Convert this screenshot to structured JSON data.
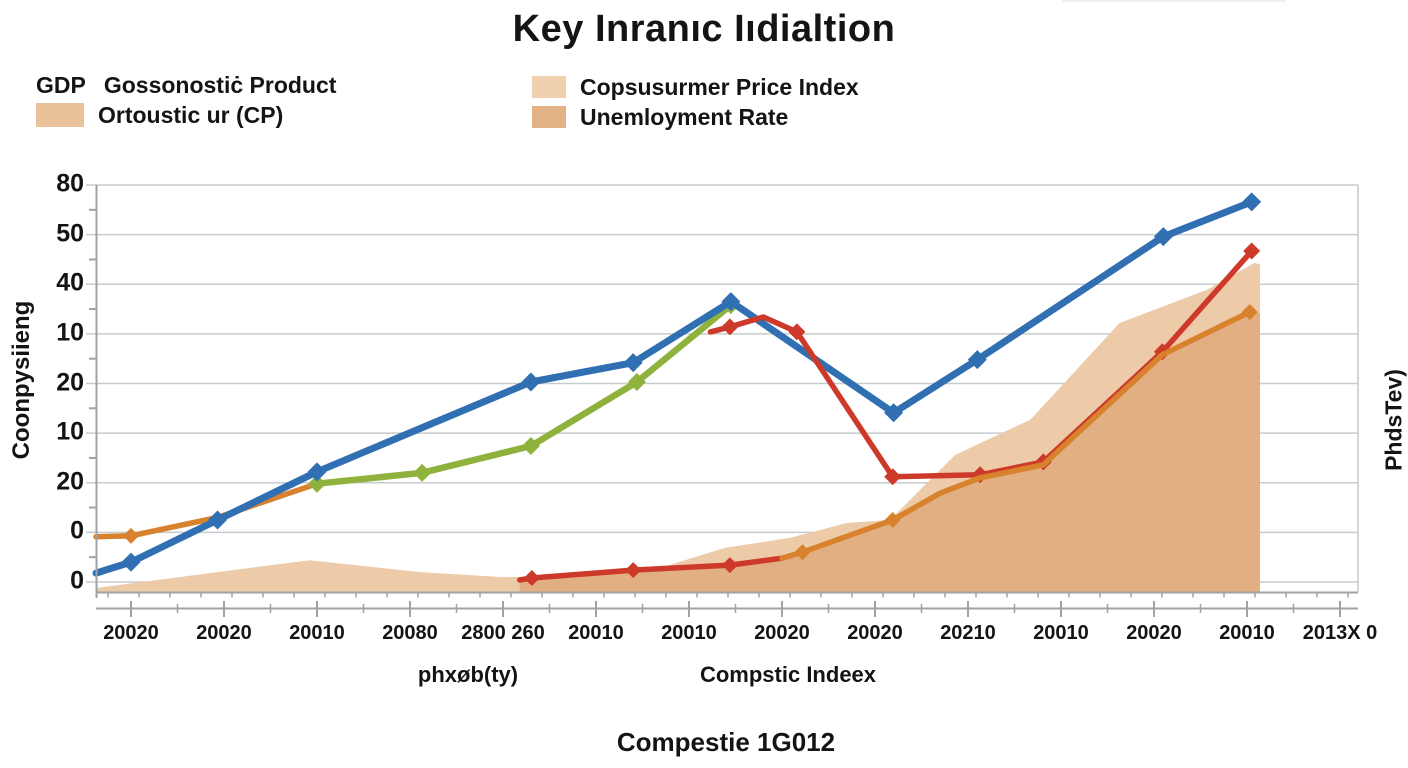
{
  "title": "Key Inranıc Iıdialtion",
  "legend_left": {
    "row1_prefix": "GDP",
    "row1_label": "Gossonostiċ Product",
    "row2_label": "Ortoustic ur (CP)",
    "row2_swatch": "#E9C19A"
  },
  "legend_right": {
    "items": [
      {
        "label": "Copsusurmer Price Index",
        "swatch": "#F0D0AE"
      },
      {
        "label": "Unemloyment Rate",
        "swatch": "#E2B184"
      }
    ]
  },
  "axes": {
    "y_left_title": "Coonpysiieng",
    "y_right_title": "PhdsTev)",
    "x_axis_label_left": "phxøb(ty)",
    "x_axis_label_right": "Compstic Indeex",
    "caption": "Compestie 1G012"
  },
  "chart_data": {
    "type": "line",
    "title": "Key Inranıc Iıdialtion",
    "grid": true,
    "legend_position": "top-left",
    "y_tick_labels": [
      "80",
      "50",
      "40",
      "10",
      "20",
      "10",
      "20",
      "0",
      "0"
    ],
    "x_tick_labels": [
      "20020",
      "20020",
      "20010",
      "20080",
      "2800 260",
      "20010",
      "20010",
      "20020",
      "20020",
      "20210",
      "20010",
      "20020",
      "20010",
      "2013X 0"
    ],
    "units_per_gridline": 10,
    "x_unit": "tick-index",
    "areas": [
      {
        "name": "cpi-area",
        "color": "#EDCBA8",
        "baseline": -2,
        "points": [
          [
            -0.376,
            -1.2
          ],
          [
            0.28,
            0.4
          ],
          [
            1.92,
            4.4
          ],
          [
            3.11,
            2.0
          ],
          [
            3.97,
            1.0
          ],
          [
            5.37,
            1.0
          ],
          [
            6.39,
            6.9
          ],
          [
            7.09,
            8.9
          ],
          [
            7.7,
            11.9
          ],
          [
            8.16,
            12.5
          ],
          [
            8.86,
            25.6
          ],
          [
            9.67,
            32.7
          ],
          [
            10.63,
            52.2
          ],
          [
            11.57,
            58.9
          ],
          [
            12.08,
            64.3
          ],
          [
            12.14,
            64.0
          ]
        ]
      },
      {
        "name": "unemployment-area",
        "color": "#E2AF82",
        "baseline": -2,
        "points": [
          [
            4.18,
            0.4
          ],
          [
            4.31,
            0.8
          ],
          [
            5.4,
            2.4
          ],
          [
            6.44,
            3.4
          ],
          [
            7.22,
            6.0
          ],
          [
            8.19,
            12.5
          ],
          [
            8.7,
            17.9
          ],
          [
            9.13,
            21.0
          ],
          [
            9.81,
            23.6
          ],
          [
            11.09,
            45.8
          ],
          [
            12.03,
            54.4
          ],
          [
            12.14,
            54.2
          ]
        ]
      }
    ],
    "series": [
      {
        "name": "orange-left-line",
        "color": "#D8822E",
        "width": 5.5,
        "marker": "diamond",
        "marker_size": 8,
        "points": [
          [
            -0.376,
            9.1,
            0
          ],
          [
            0,
            9.3,
            1
          ],
          [
            0.93,
            13.0,
            0
          ],
          [
            2.0,
            19.8,
            0
          ]
        ]
      },
      {
        "name": "green-line",
        "color": "#8EB23C",
        "width": 6.5,
        "marker": "diamond",
        "marker_size": 9,
        "points": [
          [
            2.0,
            19.8,
            1
          ],
          [
            3.13,
            22.0,
            1
          ],
          [
            4.3,
            27.4,
            1
          ],
          [
            5.44,
            40.3,
            1
          ],
          [
            6.45,
            55.8,
            1
          ]
        ]
      },
      {
        "name": "gdp-blue-line",
        "color": "#2F6FB2",
        "width": 7,
        "marker": "diamond",
        "marker_size": 9.5,
        "points": [
          [
            -0.376,
            1.8,
            0
          ],
          [
            0,
            4.0,
            1
          ],
          [
            0.93,
            12.5,
            1
          ],
          [
            2.0,
            22.2,
            1
          ],
          [
            4.3,
            40.3,
            1
          ],
          [
            5.4,
            44.2,
            1
          ],
          [
            6.45,
            56.5,
            1
          ],
          [
            8.2,
            34.1,
            1
          ],
          [
            9.1,
            44.8,
            1
          ],
          [
            11.1,
            69.6,
            1
          ],
          [
            12.05,
            76.6,
            1
          ]
        ]
      },
      {
        "name": "red-line",
        "color": "#CE3A2A",
        "width": 5.5,
        "marker": "diamond",
        "marker_size": 8.5,
        "points": [
          [
            6.23,
            50.4,
            0
          ],
          [
            6.44,
            51.4,
            1
          ],
          [
            6.8,
            53.4,
            0
          ],
          [
            7.16,
            50.4,
            1
          ],
          [
            8.19,
            21.2,
            1
          ],
          [
            9.13,
            21.6,
            1
          ],
          [
            9.81,
            24.2,
            1
          ],
          [
            11.09,
            46.4,
            1
          ],
          [
            12.05,
            66.7,
            1
          ]
        ]
      },
      {
        "name": "lower-red-line",
        "color": "#CE3A2A",
        "width": 5.5,
        "marker": "diamond",
        "marker_size": 8,
        "points": [
          [
            4.18,
            0.4,
            0
          ],
          [
            4.31,
            0.8,
            1
          ],
          [
            5.4,
            2.4,
            1
          ],
          [
            6.44,
            3.4,
            1
          ],
          [
            7.0,
            4.8,
            0
          ]
        ]
      },
      {
        "name": "lower-orange-line",
        "color": "#D8822E",
        "width": 5.5,
        "marker": "diamond",
        "marker_size": 8,
        "points": [
          [
            7.0,
            4.8,
            0
          ],
          [
            7.22,
            6.0,
            1
          ],
          [
            8.19,
            12.5,
            1
          ],
          [
            8.7,
            17.9,
            0
          ],
          [
            9.13,
            21.0,
            0
          ],
          [
            9.81,
            23.6,
            0
          ],
          [
            11.09,
            45.8,
            0
          ],
          [
            12.03,
            54.4,
            1
          ]
        ]
      }
    ],
    "colors": {
      "grid": "#C7CBCD",
      "spine": "#9EA3A6",
      "text": "#141414"
    }
  }
}
